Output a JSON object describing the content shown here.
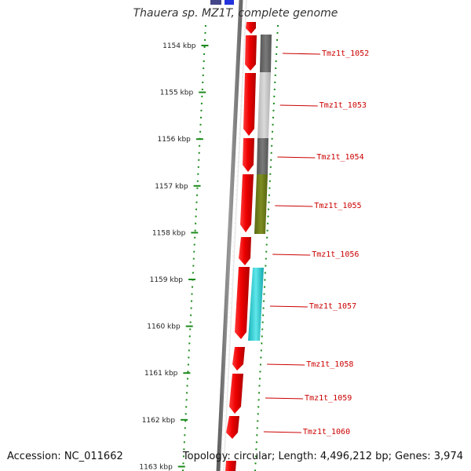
{
  "title": "Thauera sp. MZ1T, complete genome",
  "footer": {
    "accession": "Accession: NC_011662",
    "summary": "Topology: circular; Length: 4,496,212 bp; Genes: 3,974"
  },
  "colors": {
    "gene": "#ee0000",
    "ticks": "#1a8a1a",
    "gene_label": "#cc0000",
    "backbone": "#8a8a8a",
    "cog_dark_gray": "#6a6a6a",
    "cog_light_gray": "#c4c4c4",
    "cog_olive": "#6e7d18",
    "cog_cyan": "#1fc7cc",
    "top_blue": "#2233dd",
    "top_navy": "#444488"
  },
  "ticks": [
    "1154 kbp",
    "1155 kbp",
    "1156 kbp",
    "1157 kbp",
    "1158 kbp",
    "1159 kbp",
    "1160 kbp",
    "1161 kbp",
    "1162 kbp",
    "1163 kbp"
  ],
  "genes": [
    "Tmz1t_1052",
    "Tmz1t_1053",
    "Tmz1t_1054",
    "Tmz1t_1055",
    "Tmz1t_1056",
    "Tmz1t_1057",
    "Tmz1t_1058",
    "Tmz1t_1059",
    "Tmz1t_1060"
  ]
}
